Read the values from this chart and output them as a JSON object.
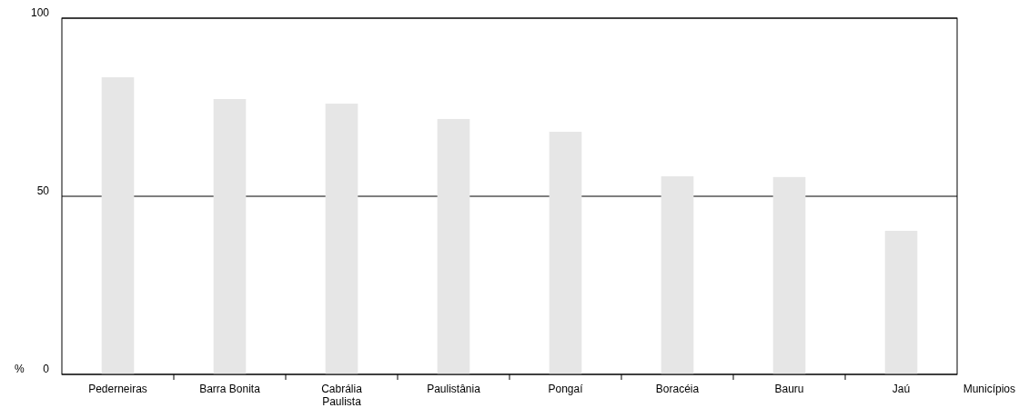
{
  "chart_data": {
    "type": "bar",
    "xlabel": "Municípios",
    "ylabel": "%",
    "categories": [
      "Pederneiras",
      "Barra Bonita",
      "Cabrália Paulista",
      "Paulistânia",
      "Pongaí",
      "Boracéia",
      "Bauru",
      "Jaú"
    ],
    "values": [
      83.4,
      77.3,
      76,
      71.7,
      68.1,
      55.6,
      55.4,
      40.3
    ],
    "color": "#e6e6e6",
    "ylim": [
      0,
      100
    ],
    "yticks": [
      0,
      50,
      100
    ],
    "grid": "y"
  }
}
